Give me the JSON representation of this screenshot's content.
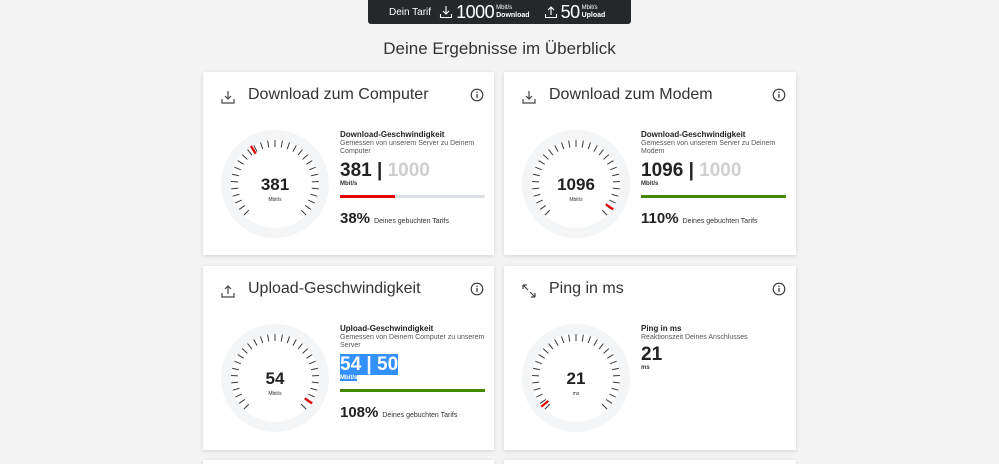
{
  "tarif": {
    "label": "Dein Tarif",
    "download_value": "1000",
    "download_unit": "Mbit/s",
    "download_label": "Download",
    "upload_value": "50",
    "upload_unit": "Mbit/s",
    "upload_label": "Upload"
  },
  "heading": "Deine Ergebnisse im Überblick",
  "colors": {
    "red": "#e60000",
    "green": "#428a00",
    "track": "#dde1e5",
    "tarif_bg": "#25282b",
    "selection": "#3390ff"
  },
  "cards": {
    "download_computer": {
      "title": "Download zum Computer",
      "icon": "download-icon",
      "gauge_value": "381",
      "gauge_unit": "Mbit/s",
      "detail_title": "Download-Geschwindigkeit",
      "detail_sub": "Gemessen von unserem Server zu Deinem Computer",
      "current": "381",
      "separator": "|",
      "tarif": "1000",
      "unit": "Mbit/s",
      "progress_fraction": 0.38,
      "percent": "38%",
      "percent_label": "Deines gebuchten Tarifs"
    },
    "download_modem": {
      "title": "Download zum Modem",
      "icon": "download-icon",
      "gauge_value": "1096",
      "gauge_unit": "Mbit/s",
      "detail_title": "Download-Geschwindigkeit",
      "detail_sub": "Gemessen von unserem Server zu Deinem Modem",
      "current": "1096",
      "separator": "|",
      "tarif": "1000",
      "unit": "Mbit/s",
      "progress_fraction": 1.0,
      "percent": "110%",
      "percent_label": "Deines gebuchten Tarifs"
    },
    "upload": {
      "title": "Upload-Geschwindigkeit",
      "icon": "upload-icon",
      "gauge_value": "54",
      "gauge_unit": "Mbit/s",
      "detail_title": "Upload-Geschwindigkeit",
      "detail_sub": "Gemessen von Deinem Computer zu unserem Server",
      "current": "54",
      "separator": "|",
      "tarif": "50",
      "unit": "Mbit/s",
      "progress_fraction": 1.0,
      "percent": "108%",
      "percent_label": "Deines gebuchten Tarifs"
    },
    "ping": {
      "title": "Ping in ms",
      "icon": "ping-arrows-icon",
      "gauge_value": "21",
      "gauge_unit": "ms",
      "detail_title": "Ping in ms",
      "detail_sub": "Reaktionszeit Deines Anschlusses",
      "value": "21",
      "unit": "ms"
    }
  }
}
